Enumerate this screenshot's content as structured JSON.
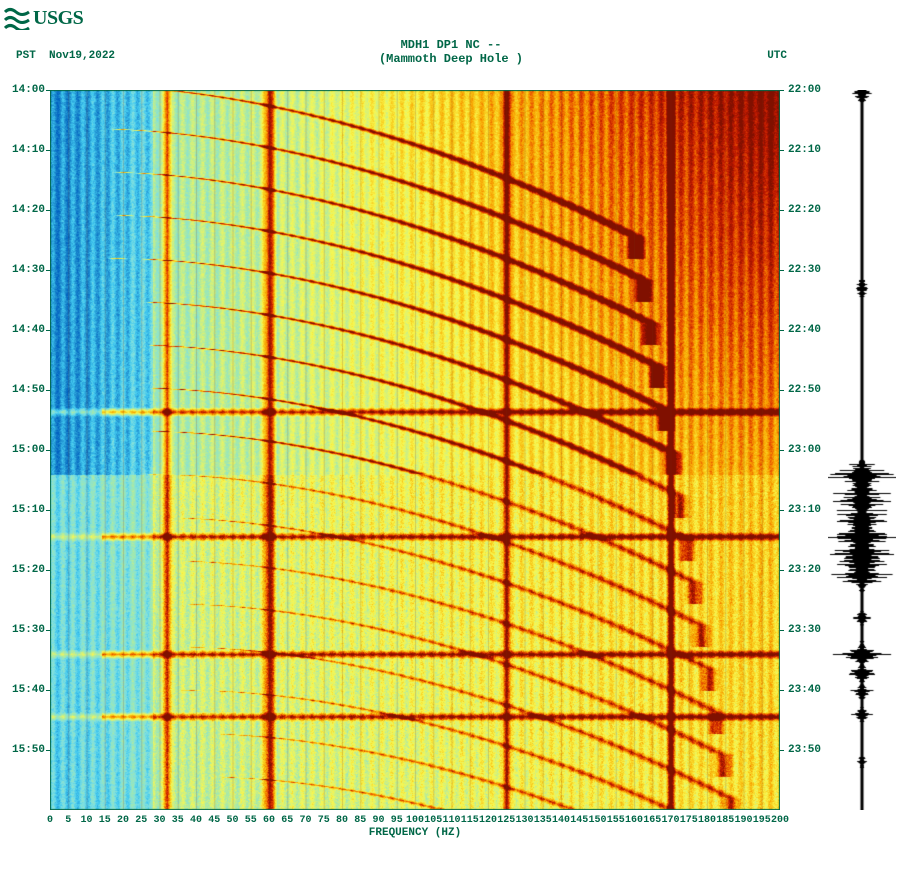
{
  "logo": {
    "text": "USGS",
    "color": "#006747"
  },
  "header": {
    "line1": "MDH1 DP1 NC --",
    "line2": "(Mammoth Deep Hole )"
  },
  "labels": {
    "pst": "PST",
    "date": "Nov19,2022",
    "utc": "UTC",
    "x_axis": "FREQUENCY (HZ)"
  },
  "left_times": [
    "14:00",
    "14:10",
    "14:20",
    "14:30",
    "14:40",
    "14:50",
    "15:00",
    "15:10",
    "15:20",
    "15:30",
    "15:40",
    "15:50"
  ],
  "right_times": [
    "22:00",
    "22:10",
    "22:20",
    "22:30",
    "22:40",
    "22:50",
    "23:00",
    "23:10",
    "23:20",
    "23:30",
    "23:40",
    "23:50"
  ],
  "x_ticks": [
    0,
    5,
    10,
    15,
    20,
    25,
    30,
    35,
    40,
    45,
    50,
    55,
    60,
    65,
    70,
    75,
    80,
    85,
    90,
    95,
    100,
    105,
    110,
    115,
    120,
    125,
    130,
    135,
    140,
    145,
    150,
    155,
    160,
    165,
    170,
    175,
    180,
    185,
    190,
    195,
    200
  ],
  "spectrogram": {
    "type": "heatmap",
    "xlim": [
      0,
      200
    ],
    "ytime_min": 0,
    "ytime_max": 60,
    "colormap": [
      "#0060c0",
      "#2090d0",
      "#40c8f0",
      "#80e0e0",
      "#a0e8b0",
      "#d0f080",
      "#f8f850",
      "#f8d020",
      "#f8a000",
      "#e85000",
      "#c01800",
      "#801000"
    ],
    "background": "#ffffff",
    "text_color": "#006747",
    "tick_color": "#006747",
    "grid_color": "rgba(120,48,16,0.22)",
    "vert_streaks_hz": [
      32,
      60,
      125,
      170
    ],
    "vert_streaks_width": [
      1.4,
      2.2,
      1.2,
      1.5
    ],
    "blue_edge_hz": 28,
    "arc_count": 18,
    "arc_spacing_min": 3.6,
    "arc_amplitude_hz": 150,
    "low_band_start_min": 32,
    "low_band_end_min": 60,
    "hot_top_right": true,
    "strong_lines_min": [
      26.8,
      37.2,
      47.0,
      52.2
    ]
  },
  "seismogram": {
    "type": "trace",
    "color": "#000000",
    "base_amplitude": 1.0,
    "events": [
      {
        "t": 0,
        "a": 18
      },
      {
        "t": 16.5,
        "a": 10
      },
      {
        "t": 32,
        "a": 28
      },
      {
        "t": 33.2,
        "a": 20
      },
      {
        "t": 34.5,
        "a": 24
      },
      {
        "t": 36,
        "a": 26
      },
      {
        "t": 37.2,
        "a": 32
      },
      {
        "t": 38.4,
        "a": 30
      },
      {
        "t": 39.5,
        "a": 34
      },
      {
        "t": 41,
        "a": 12
      },
      {
        "t": 44,
        "a": 8
      },
      {
        "t": 47,
        "a": 22
      },
      {
        "t": 48.5,
        "a": 14
      },
      {
        "t": 50,
        "a": 10
      },
      {
        "t": 52,
        "a": 8
      },
      {
        "t": 56,
        "a": 6
      }
    ],
    "burst_start": 31,
    "burst_end": 41
  }
}
